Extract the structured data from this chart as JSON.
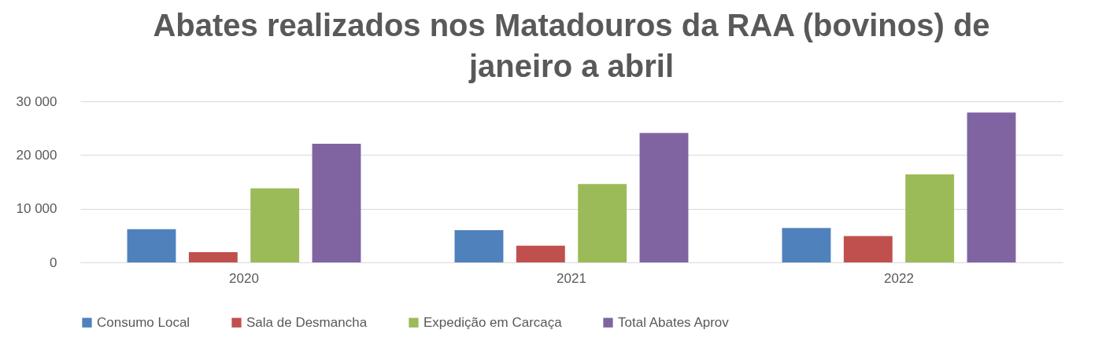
{
  "chart_data": {
    "type": "bar",
    "title": "Abates realizados nos Matadouros da RAA (bovinos) de janeiro a abril",
    "categories": [
      "2020",
      "2021",
      "2022"
    ],
    "series": [
      {
        "name": "Consumo Local",
        "color": "#4f81bd",
        "values": [
          6200,
          6000,
          6400
        ]
      },
      {
        "name": "Sala de Desmancha",
        "color": "#c0504d",
        "values": [
          1900,
          3100,
          4900
        ]
      },
      {
        "name": "Expedição em Carcaça",
        "color": "#9bbb59",
        "values": [
          13800,
          14600,
          16400
        ]
      },
      {
        "name": "Total Abates Aprov",
        "color": "#8064a2",
        "values": [
          22100,
          24100,
          27900
        ]
      }
    ],
    "ylim": [
      0,
      30000
    ],
    "yticks": [
      {
        "value": 0,
        "label": "0"
      },
      {
        "value": 10000,
        "label": "10 000"
      },
      {
        "value": 20000,
        "label": "20 000"
      },
      {
        "value": 30000,
        "label": "30 000"
      }
    ],
    "grid": "y",
    "legend": "bottom"
  }
}
